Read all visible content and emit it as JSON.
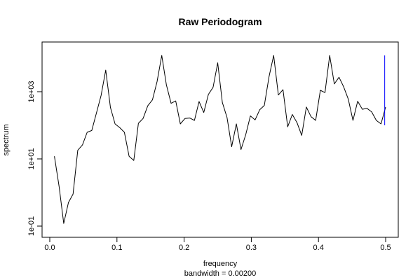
{
  "chart_data": {
    "type": "line",
    "title": "Raw Periodogram",
    "xlabel": "frequency",
    "xlabel_sub": "bandwidth = 0.00200",
    "ylabel": "spectrum",
    "y_scale": "log10",
    "xlim": [
      0.0,
      0.5
    ],
    "ylim": [
      0.1,
      10000
    ],
    "grid": false,
    "x_ticks": [
      0.0,
      0.1,
      0.2,
      0.3,
      0.4,
      0.5
    ],
    "x_tick_labels": [
      "0.0",
      "0.1",
      "0.2",
      "0.3",
      "0.4",
      "0.5"
    ],
    "y_ticks": [
      0.1,
      10,
      1000
    ],
    "y_tick_labels": [
      "1e-01",
      "1e+01",
      "1e+03"
    ],
    "series": [
      {
        "color": "#000000",
        "x": [
          0.0069,
          0.0139,
          0.0208,
          0.0278,
          0.0347,
          0.0417,
          0.0486,
          0.0556,
          0.0625,
          0.0694,
          0.0764,
          0.0833,
          0.0903,
          0.0972,
          0.1042,
          0.1111,
          0.1181,
          0.125,
          0.1319,
          0.1389,
          0.1458,
          0.1528,
          0.1597,
          0.1667,
          0.1736,
          0.1806,
          0.1875,
          0.1944,
          0.2014,
          0.2083,
          0.2153,
          0.2222,
          0.2292,
          0.2361,
          0.2431,
          0.25,
          0.2569,
          0.2639,
          0.2708,
          0.2778,
          0.2847,
          0.2917,
          0.2986,
          0.3056,
          0.3125,
          0.3194,
          0.3264,
          0.3333,
          0.3403,
          0.3472,
          0.3542,
          0.3611,
          0.3681,
          0.375,
          0.3819,
          0.3889,
          0.3958,
          0.4028,
          0.4097,
          0.4167,
          0.4236,
          0.4306,
          0.4375,
          0.4444,
          0.4514,
          0.4583,
          0.4653,
          0.4722,
          0.4792,
          0.4861,
          0.4931,
          0.5
        ],
        "y": [
          12,
          1.5,
          0.12,
          0.5,
          0.9,
          18,
          26,
          62,
          70,
          230,
          780,
          4400,
          340,
          110,
          85,
          62,
          12,
          9,
          115,
          160,
          380,
          570,
          2000,
          12000,
          1600,
          450,
          530,
          110,
          160,
          165,
          140,
          510,
          240,
          830,
          1350,
          7200,
          480,
          170,
          23,
          110,
          19,
          52,
          190,
          145,
          290,
          390,
          2800,
          12000,
          800,
          1150,
          90,
          210,
          120,
          50,
          350,
          180,
          140,
          1100,
          940,
          12000,
          1700,
          2700,
          1400,
          600,
          140,
          520,
          300,
          320,
          250,
          140,
          110,
          350
        ]
      }
    ],
    "annotation_segment": {
      "color": "#0000ff",
      "x": 0.4986,
      "y_from": 100,
      "y_to": 12000
    }
  }
}
